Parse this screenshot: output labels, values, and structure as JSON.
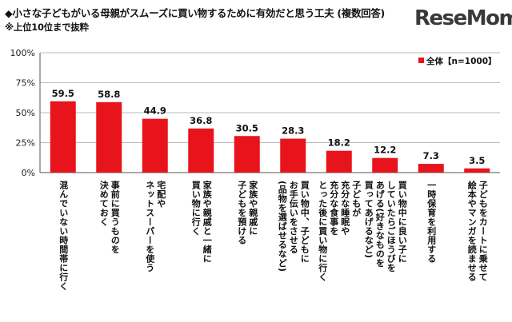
{
  "header": {
    "title": "◆小さな子どもがいる母親がスムーズに買い物するために有効だと思う工夫 (複数回答)",
    "note": "※上位10位まで抜粋",
    "logo": "ReseMom"
  },
  "chart_data": {
    "type": "bar",
    "categories": [
      "混んでいない時間帯に行く",
      "事前に買うものを\n決めておく",
      "宅配や\nネットスーパーを使う",
      "家族や親戚と一緒に\n買い物に行く",
      "家族や親戚に\n子どもを預ける",
      "買い物中、子どもに\nお手伝いをさせる\n(品物を選ばせるなど)",
      "子どもが\n充分な睡眠や\n充分な食事を\nとった後に買い物に行く",
      "買い物中に良い子に\nしていたらごほうびを\nあげる(好きなものを\n買ってあげるなど)",
      "一時保育を利用する",
      "子どもをカートに乗せて\n絵本やマンガを読ませる"
    ],
    "series": [
      {
        "name": "全体【n=1000】",
        "values": [
          59.5,
          58.8,
          44.9,
          36.8,
          30.5,
          28.3,
          18.2,
          12.2,
          7.3,
          3.5
        ]
      }
    ],
    "ylim": [
      0,
      100
    ],
    "yticks": [
      "0%",
      "25%",
      "50%",
      "75%",
      "100%"
    ],
    "ytick_values": [
      0,
      25,
      50,
      75,
      100
    ],
    "grid": true,
    "legend": "top-right",
    "bar_color": "#e8141c"
  }
}
